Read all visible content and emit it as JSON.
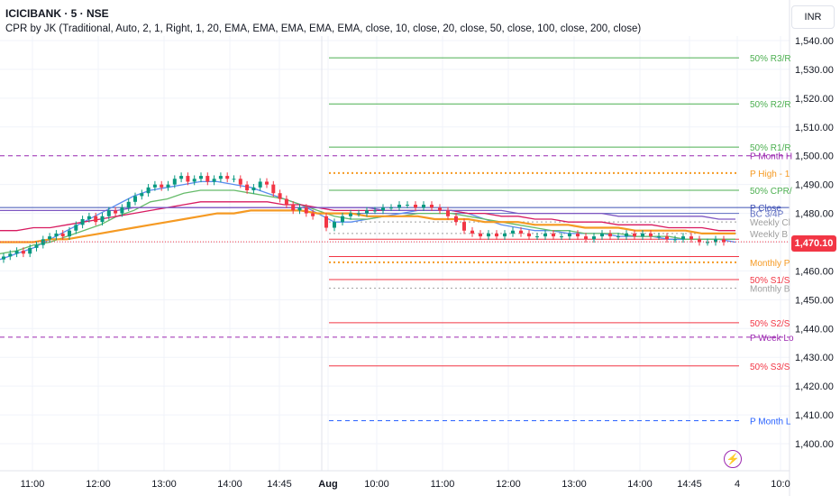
{
  "header": {
    "symbol": "ICICIBANK · 5 · NSE",
    "indicator": "CPR by JK (Traditional, Auto, 2, 1, Right, 1, 20, EMA, EMA, EMA, EMA, EMA, close, 10, close, 20, close, 50, close, 100, close, 200, close)"
  },
  "currency": "INR",
  "last_price": "1,470.10",
  "colors": {
    "up": "#089981",
    "down": "#f23645",
    "accent_orange": "#f59a23",
    "purple": "#9c27b0",
    "blue": "#2962ff"
  },
  "chart_data": {
    "type": "candlestick",
    "ylim": [
      1397,
      1546
    ],
    "y_ticks": [
      "1,540.00",
      "1,530.00",
      "1,520.00",
      "1,510.00",
      "1,500.00",
      "1,490.00",
      "1,480.00",
      "1,470.00",
      "1,460.00",
      "1,450.00",
      "1,440.00",
      "1,430.00",
      "1,420.00",
      "1,410.00",
      "1,400.00"
    ],
    "x_ticks": [
      "11:00",
      "12:00",
      "13:00",
      "14:00",
      "14:45",
      "Aug",
      "10:00",
      "11:00",
      "12:00",
      "13:00",
      "14:00",
      "14:45",
      "4",
      "10:0"
    ],
    "day1_closes": [
      1465,
      1466,
      1467,
      1466,
      1468,
      1469,
      1471,
      1472,
      1473,
      1472,
      1474,
      1476,
      1478,
      1479,
      1477,
      1479,
      1481,
      1480,
      1482,
      1484,
      1486,
      1487,
      1489,
      1490,
      1489,
      1490,
      1492,
      1493,
      1491,
      1492,
      1493,
      1491,
      1492,
      1493,
      1492,
      1492,
      1490,
      1488,
      1489,
      1491,
      1490,
      1487,
      1485,
      1483,
      1481,
      1482,
      1480,
      1479
    ],
    "day2_closes": [
      1475,
      1477,
      1479,
      1480,
      1480,
      1481,
      1481,
      1482,
      1482,
      1483,
      1483,
      1482,
      1483,
      1482,
      1481,
      1479,
      1477,
      1474,
      1473,
      1472,
      1473,
      1472,
      1473,
      1474,
      1473,
      1472,
      1472,
      1473,
      1472,
      1472,
      1473,
      1472,
      1471,
      1472,
      1473,
      1472,
      1472,
      1473,
      1472,
      1473,
      1472,
      1472,
      1471,
      1471,
      1472,
      1471,
      1470,
      1470,
      1471,
      1470
    ],
    "emas": [
      {
        "color": "#5b8def",
        "values": [
          1464,
          1466,
          1468,
          1471,
          1474,
          1477,
          1480,
          1483,
          1486,
          1488,
          1489,
          1490,
          1491,
          1491,
          1490,
          1489,
          1487,
          1485,
          1483,
          1480,
          1477,
          1477,
          1478,
          1479,
          1480,
          1481,
          1481,
          1481,
          1480,
          1478,
          1476,
          1475,
          1474,
          1474,
          1473,
          1473,
          1473,
          1472,
          1472,
          1472,
          1471,
          1471,
          1471,
          1471,
          1470
        ]
      },
      {
        "color": "#66bb6a",
        "values": [
          1466,
          1467,
          1469,
          1470,
          1472,
          1474,
          1476,
          1479,
          1481,
          1484,
          1485,
          1487,
          1488,
          1488,
          1488,
          1487,
          1486,
          1485,
          1483,
          1481,
          1479,
          1478,
          1478,
          1479,
          1479,
          1480,
          1480,
          1480,
          1479,
          1478,
          1477,
          1476,
          1475,
          1474,
          1474,
          1473,
          1473,
          1473,
          1472,
          1472,
          1472,
          1471,
          1471,
          1471,
          1471
        ]
      },
      {
        "color": "#d81b60",
        "values": [
          1474,
          1474,
          1475,
          1475,
          1476,
          1477,
          1478,
          1479,
          1480,
          1481,
          1482,
          1483,
          1484,
          1484,
          1484,
          1484,
          1484,
          1483,
          1483,
          1482,
          1481,
          1481,
          1481,
          1481,
          1481,
          1481,
          1481,
          1481,
          1480,
          1480,
          1479,
          1479,
          1478,
          1478,
          1477,
          1477,
          1477,
          1476,
          1476,
          1476,
          1475,
          1475,
          1475,
          1474,
          1474
        ]
      },
      {
        "color": "#f59a23",
        "values": [
          1470,
          1470,
          1470,
          1471,
          1471,
          1472,
          1473,
          1474,
          1475,
          1476,
          1477,
          1478,
          1479,
          1480,
          1480,
          1481,
          1481,
          1481,
          1481,
          1480,
          1480,
          1480,
          1479,
          1479,
          1479,
          1479,
          1478,
          1478,
          1478,
          1477,
          1477,
          1477,
          1476,
          1476,
          1476,
          1475,
          1475,
          1475,
          1474,
          1474,
          1474,
          1474,
          1473,
          1473,
          1473
        ]
      },
      {
        "color": "#7e57c2",
        "values": [
          1481,
          1481,
          1481,
          1481,
          1481,
          1481,
          1481,
          1481,
          1482,
          1482,
          1482,
          1482,
          1482,
          1482,
          1482,
          1482,
          1482,
          1482,
          1482,
          1482,
          1482,
          1482,
          1482,
          1481,
          1481,
          1481,
          1481,
          1481,
          1481,
          1481,
          1481,
          1480,
          1480,
          1480,
          1480,
          1480,
          1480,
          1479,
          1479,
          1479,
          1479,
          1479,
          1479,
          1478,
          1478
        ]
      }
    ],
    "levels": [
      {
        "price": 1534,
        "color": "#4caf50",
        "style": "solid",
        "label": "50% R3/R"
      },
      {
        "price": 1518,
        "color": "#4caf50",
        "style": "solid",
        "label": "50% R2/R"
      },
      {
        "price": 1503,
        "color": "#4caf50",
        "style": "solid",
        "label": "50% R1/R"
      },
      {
        "price": 1500,
        "color": "#9c27b0",
        "style": "dashed",
        "label": "P Month H",
        "full": true
      },
      {
        "price": 1494,
        "color": "#f59a23",
        "style": "dotted",
        "label": "P High - 1"
      },
      {
        "price": 1488,
        "color": "#4caf50",
        "style": "solid",
        "label": "50% CPR/"
      },
      {
        "price": 1482,
        "color": "#3f51b5",
        "style": "solid",
        "label": "P Close",
        "full": true
      },
      {
        "price": 1480,
        "color": "#5c6bc0",
        "style": "solid",
        "label": "BC 3/4P"
      },
      {
        "price": 1477,
        "color": "#9e9e9e",
        "style": "dotted",
        "label": "Weekly Cl"
      },
      {
        "price": 1473,
        "color": "#9e9e9e",
        "style": "dotted",
        "label": "Weekly B"
      },
      {
        "price": 1471,
        "color": "#f23645",
        "style": "solid",
        "label": ""
      },
      {
        "price": 1465,
        "color": "#f23645",
        "style": "solid",
        "label": ""
      },
      {
        "price": 1463,
        "color": "#f59a23",
        "style": "dotted",
        "label": "Monthly P"
      },
      {
        "price": 1457,
        "color": "#f23645",
        "style": "solid",
        "label": "50% S1/S"
      },
      {
        "price": 1454,
        "color": "#9e9e9e",
        "style": "dotted",
        "label": "Monthly B"
      },
      {
        "price": 1442,
        "color": "#f23645",
        "style": "solid",
        "label": "50% S2/S"
      },
      {
        "price": 1437,
        "color": "#9c27b0",
        "style": "dashed",
        "label": "P Week Lo",
        "full": true
      },
      {
        "price": 1427,
        "color": "#f23645",
        "style": "solid",
        "label": "50% S3/S"
      },
      {
        "price": 1408,
        "color": "#2962ff",
        "style": "dashed",
        "label": "P Month L"
      }
    ]
  }
}
